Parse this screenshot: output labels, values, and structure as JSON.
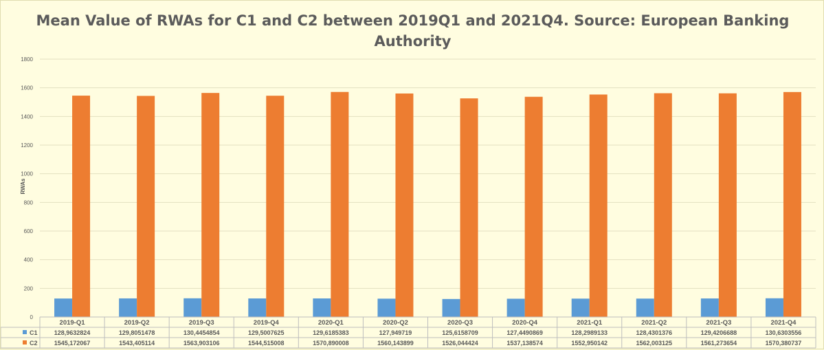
{
  "chart_data": {
    "type": "bar",
    "title_line1": "Mean Value of RWAs for C1 and C2 between 2019Q1 and 2021Q4. Source: European Banking",
    "title_line2": "Authority",
    "xlabel": "",
    "ylabel": "RWAs",
    "ylim": [
      0,
      1800
    ],
    "yticks": [
      "0",
      "200",
      "400",
      "600",
      "800",
      "1000",
      "1200",
      "1400",
      "1600",
      "1800"
    ],
    "grid": true,
    "legend": "data-table",
    "categories": [
      "2019-Q1",
      "2019-Q2",
      "2019-Q3",
      "2019-Q4",
      "2020-Q1",
      "2020-Q2",
      "2020-Q3",
      "2020-Q4",
      "2021-Q1",
      "2021-Q2",
      "2021-Q3",
      "2021-Q4"
    ],
    "series": [
      {
        "name": "C1",
        "color": "#5b9bd5",
        "values": [
          128.9632824,
          129.8051478,
          130.4454854,
          129.5007625,
          129.6185383,
          127.949719,
          125.6158709,
          127.4490869,
          128.2989133,
          128.4301376,
          129.4206688,
          130.6303556
        ],
        "labels": [
          "128,9632824",
          "129,8051478",
          "130,4454854",
          "129,5007625",
          "129,6185383",
          "127,949719",
          "125,6158709",
          "127,4490869",
          "128,2989133",
          "128,4301376",
          "129,4206688",
          "130,6303556"
        ]
      },
      {
        "name": "C2",
        "color": "#ed7d31",
        "values": [
          1545.172067,
          1543.405114,
          1563.903106,
          1544.515008,
          1570.890008,
          1560.143899,
          1526.044424,
          1537.138574,
          1552.950142,
          1562.003125,
          1561.273654,
          1570.380737
        ],
        "labels": [
          "1545,172067",
          "1543,405114",
          "1563,903106",
          "1544,515008",
          "1570,890008",
          "1560,143899",
          "1526,044424",
          "1537,138574",
          "1552,950142",
          "1562,003125",
          "1561,273654",
          "1570,380737"
        ]
      }
    ]
  }
}
